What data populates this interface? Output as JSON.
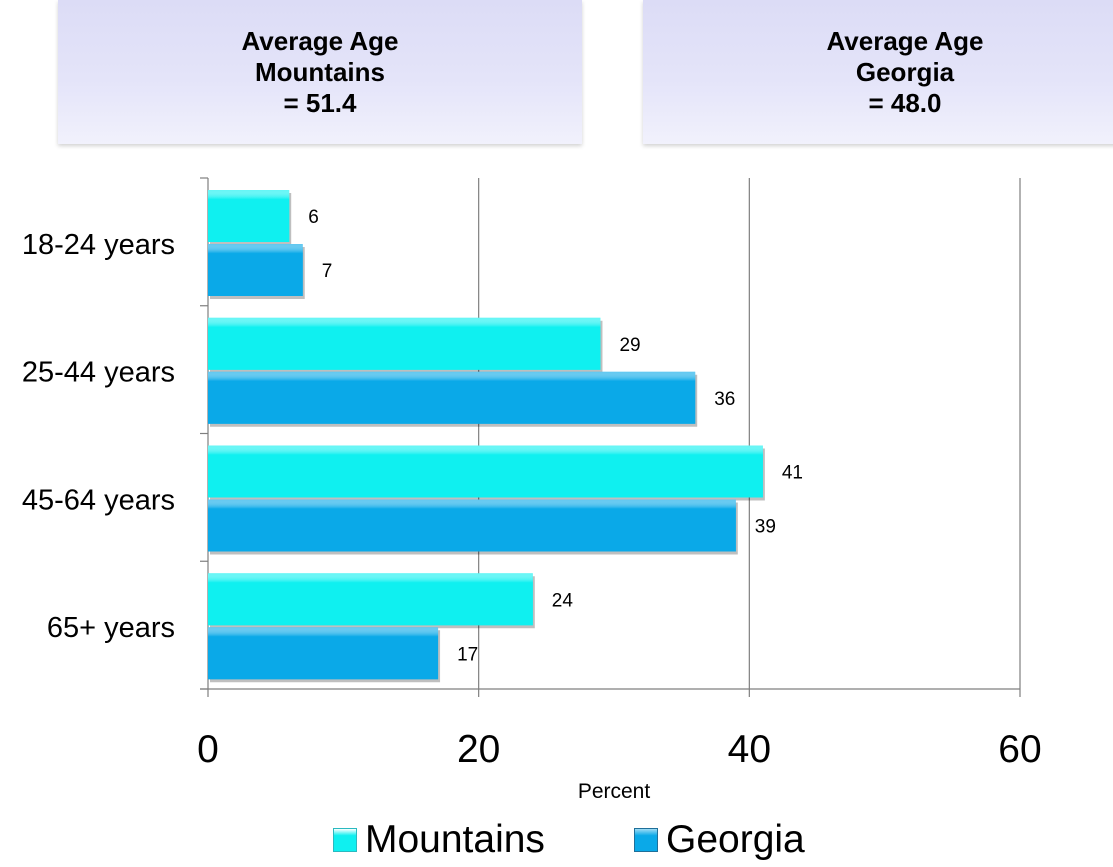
{
  "info_boxes": [
    {
      "line1": "Average Age",
      "line2": "Mountains",
      "line3": "= 51.4"
    },
    {
      "line1": "Average Age",
      "line2": "Georgia",
      "line3": "= 48.0"
    }
  ],
  "colors": {
    "mountains": "#0ff0f0",
    "georgia": "#0aa9e8",
    "grid": "#7f7f7f"
  },
  "chart_data": {
    "type": "bar",
    "orientation": "horizontal",
    "categories": [
      "18-24 years",
      "25-44 years",
      "45-64 years",
      "65+ years"
    ],
    "series": [
      {
        "name": "Mountains",
        "values": [
          6,
          29,
          41,
          24
        ]
      },
      {
        "name": "Georgia",
        "values": [
          7,
          36,
          39,
          17
        ]
      }
    ],
    "xlabel": "Percent",
    "xlim": [
      0,
      60
    ],
    "xticks": [
      0,
      20,
      40,
      60
    ],
    "grid": true,
    "legend": "bottom"
  }
}
